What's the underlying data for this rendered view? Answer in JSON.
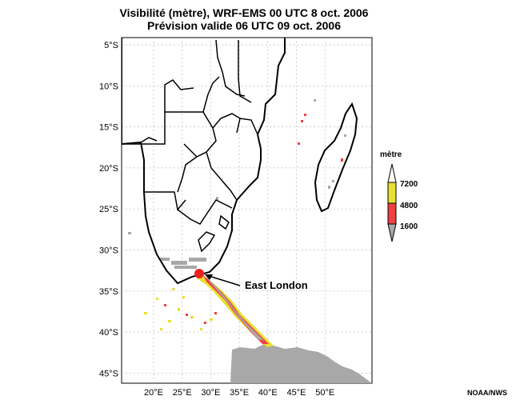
{
  "title": {
    "line1": "Visibilité (mètre), WRF-EMS 00 UTC 8 oct. 2006",
    "line2": "Prévision valide 06 UTC 09 oct. 2006"
  },
  "axes": {
    "lat_ticks": [
      "5°S",
      "10°S",
      "15°S",
      "20°S",
      "25°S",
      "30°S",
      "35°S",
      "40°S",
      "45°S"
    ],
    "lon_ticks": [
      "20°E",
      "25°E",
      "30°E",
      "35°E",
      "40°E",
      "45°E",
      "50°E"
    ]
  },
  "annotation": {
    "label": "East London"
  },
  "legend": {
    "title": "mètre",
    "labels": [
      "7200",
      "4800",
      "1600"
    ],
    "colors": {
      "yellow": "#e8e030",
      "red": "#f04040",
      "gray": "#a8a8a8"
    }
  },
  "credit": "NOAA/NWS"
}
